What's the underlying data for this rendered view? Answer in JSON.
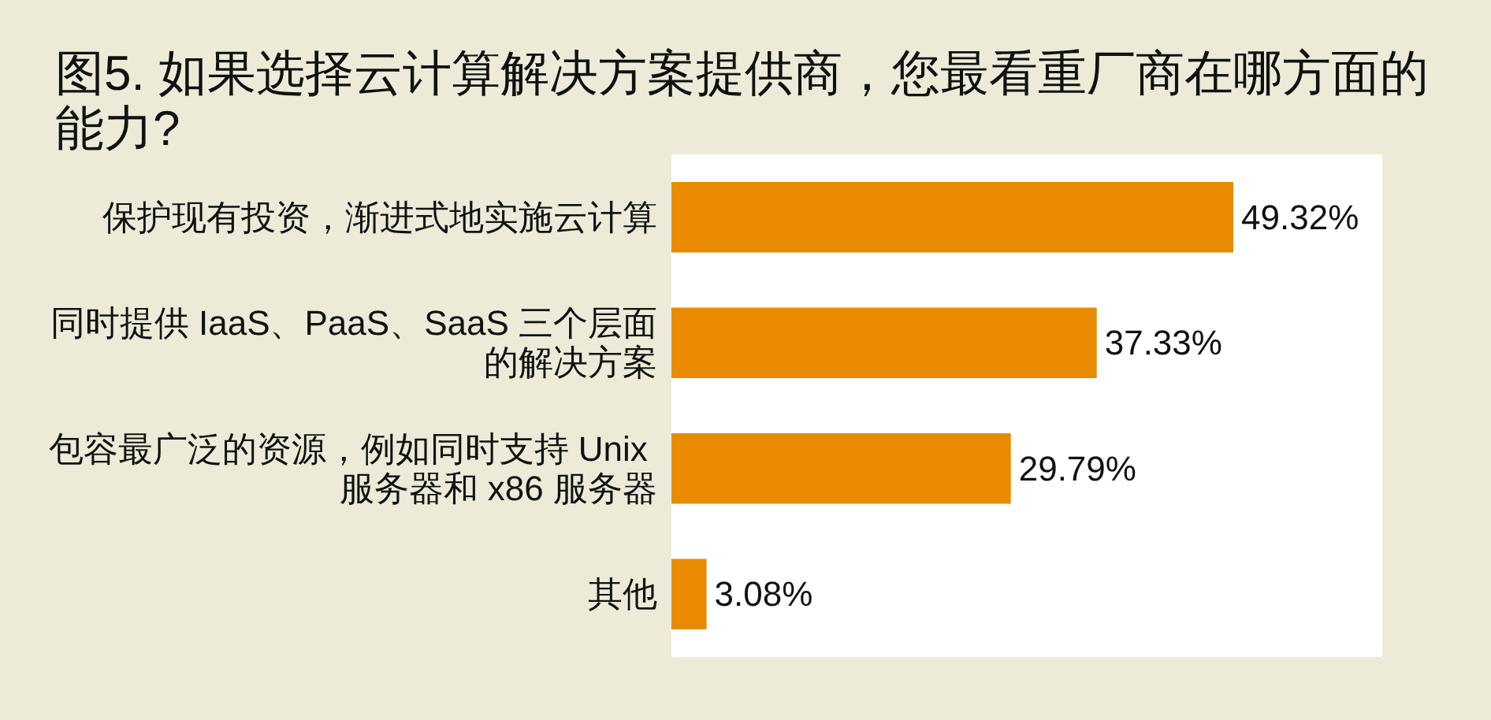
{
  "chart_data": {
    "type": "bar",
    "orientation": "horizontal",
    "tick_labels": "y",
    "title": "图5. 如果选择云计算解决方案提供商，您最看重厂商在哪方面的能力?",
    "categories": [
      "保护现有投资，渐进式地实施云计算",
      "同时提供 IaaS、PaaS、SaaS 三个层面的解决方案",
      "包容最广泛的资源，例如同时支持 Unix 服务器和 x86 服务器",
      "其他"
    ],
    "values": [
      49.32,
      37.33,
      29.79,
      3.08
    ],
    "value_labels": [
      "49.32%",
      "37.33%",
      "29.79%",
      "3.08%"
    ],
    "color": "#e98b00"
  }
}
